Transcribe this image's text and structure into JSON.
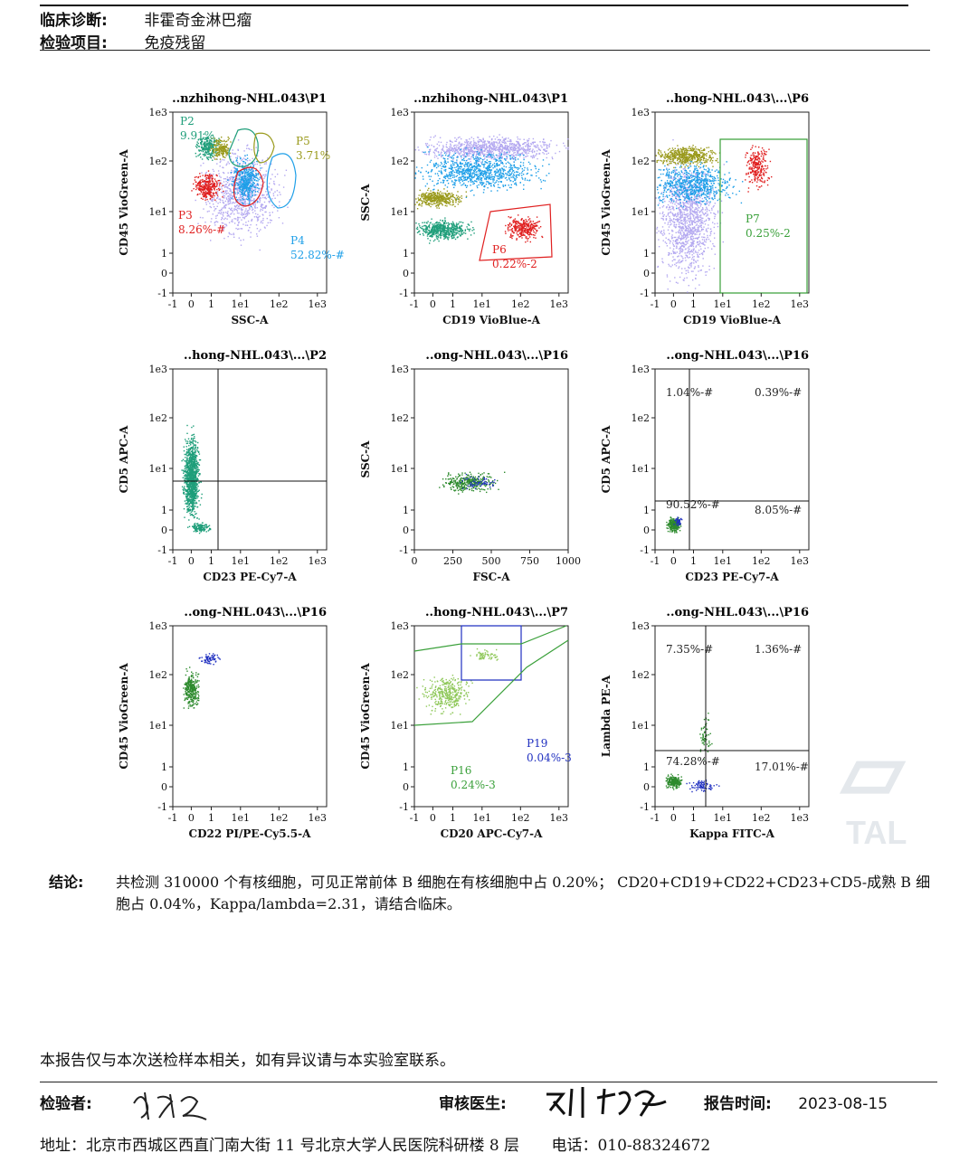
{
  "header": {
    "diagnosis_label": "临床诊断:",
    "diagnosis_value": "非霍奇金淋巴瘤",
    "item_label": "检验项目:",
    "item_value": "免疫残留"
  },
  "watermark": "TAL",
  "plots": [
    {
      "title": "..nzhihong-NHL.043\\P1",
      "xlabel": "SSC-A",
      "ylabel": "CD45 VioGreen-A",
      "xticks": [
        "-1",
        "0",
        "1",
        "1e1",
        "1e2",
        "1e3"
      ],
      "yticks": [
        "-1",
        "0",
        "1",
        "1e1",
        "1e2",
        "1e3"
      ],
      "gates": [
        {
          "name": "P2",
          "value": "9.91%",
          "color": "#1f9e7a"
        },
        {
          "name": "P5",
          "value": "3.71%",
          "color": "#9a9a1c"
        },
        {
          "name": "P3",
          "value": "8.26%-#",
          "color": "#e02020"
        },
        {
          "name": "P4",
          "value": "52.82%-#",
          "color": "#1e9fe8"
        }
      ]
    },
    {
      "title": "..nzhihong-NHL.043\\P1",
      "xlabel": "CD19 VioBlue-A",
      "ylabel": "SSC-A",
      "xticks": [
        "-1",
        "0",
        "1",
        "1e1",
        "1e2",
        "1e3"
      ],
      "yticks": [
        "-1",
        "0",
        "1",
        "1e1",
        "1e2",
        "1e3"
      ],
      "gates": [
        {
          "name": "P6",
          "value": "0.22%-2",
          "color": "#e02020"
        }
      ]
    },
    {
      "title": "..hong-NHL.043\\...\\P6",
      "xlabel": "CD19 VioBlue-A",
      "ylabel": "CD45 VioGreen-A",
      "xticks": [
        "-1",
        "0",
        "1",
        "1e1",
        "1e2",
        "1e3"
      ],
      "yticks": [
        "-1",
        "0",
        "1",
        "1e1",
        "1e2",
        "1e3"
      ],
      "gates": [
        {
          "name": "P7",
          "value": "0.25%-2",
          "color": "#3aa03a"
        }
      ]
    },
    {
      "title": "..hong-NHL.043\\...\\P2",
      "xlabel": "CD23 PE-Cy7-A",
      "ylabel": "CD5 APC-A",
      "xticks": [
        "-1",
        "0",
        "1",
        "1e1",
        "1e2",
        "1e3"
      ],
      "yticks": [
        "-1",
        "0",
        "1",
        "1e1",
        "1e2",
        "1e3"
      ],
      "quadrants": []
    },
    {
      "title": "..ong-NHL.043\\...\\P16",
      "xlabel": "FSC-A",
      "ylabel": "SSC-A",
      "xticks": [
        "0",
        "250",
        "500",
        "750",
        "1000"
      ],
      "yticks": [
        "-1",
        "0",
        "1",
        "1e1",
        "1e2",
        "1e3"
      ]
    },
    {
      "title": "..ong-NHL.043\\...\\P16",
      "xlabel": "CD23 PE-Cy7-A",
      "ylabel": "CD5 APC-A",
      "xticks": [
        "-1",
        "0",
        "1",
        "1e1",
        "1e2",
        "1e3"
      ],
      "yticks": [
        "-1",
        "0",
        "1",
        "1e1",
        "1e2",
        "1e3"
      ],
      "quadrants": [
        "1.04%-#",
        "0.39%-#",
        "90.52%-#",
        "8.05%-#"
      ]
    },
    {
      "title": "..ong-NHL.043\\...\\P16",
      "xlabel": "CD22 PI/PE-Cy5.5-A",
      "ylabel": "CD45 VioGreen-A",
      "xticks": [
        "-1",
        "0",
        "1",
        "1e1",
        "1e2",
        "1e3"
      ],
      "yticks": [
        "-1",
        "0",
        "1",
        "1e1",
        "1e2",
        "1e3"
      ]
    },
    {
      "title": "..hong-NHL.043\\...\\P7",
      "xlabel": "CD20 APC-Cy7-A",
      "ylabel": "CD45 VioGreen-A",
      "xticks": [
        "-1",
        "0",
        "1",
        "1e1",
        "1e2",
        "1e3"
      ],
      "yticks": [
        "-1",
        "0",
        "1",
        "1e1",
        "1e2",
        "1e3"
      ],
      "gates": [
        {
          "name": "P19",
          "value": "0.04%-3",
          "color": "#2030c0"
        },
        {
          "name": "P16",
          "value": "0.24%-3",
          "color": "#3aa03a"
        }
      ]
    },
    {
      "title": "..ong-NHL.043\\...\\P16",
      "xlabel": "Kappa FITC-A",
      "ylabel": "Lambda PE-A",
      "xticks": [
        "-1",
        "0",
        "1",
        "1e1",
        "1e2",
        "1e3"
      ],
      "yticks": [
        "-1",
        "0",
        "1",
        "1e1",
        "1e2",
        "1e3"
      ],
      "quadrants": [
        "7.35%-#",
        "1.36%-#",
        "74.28%-#",
        "17.01%-#"
      ]
    }
  ],
  "conclusion": {
    "label": "结论:",
    "text": "共检测 310000 个有核细胞，可见正常前体 B 细胞在有核细胞中占 0.20%；  CD20+CD19+CD22+CD23+CD5-成熟 B 细胞占 0.04%，Kappa/lambda=2.31，请结合临床。"
  },
  "disclaimer": "本报告仅与本次送检样本相关，如有异议请与本实验室联系。",
  "signatures": {
    "examiner_label": "检验者:",
    "examiner_signature": "李丹泉",
    "reviewer_label": "审核医生:",
    "reviewer_signature": "刘加女",
    "report_time_label": "报告时间:",
    "report_time": "2023-08-15"
  },
  "footer": {
    "address": "地址：北京市西城区西直门南大街 11 号北京大学人民医院科研楼 8 层",
    "phone": "电话：010-88324672"
  }
}
